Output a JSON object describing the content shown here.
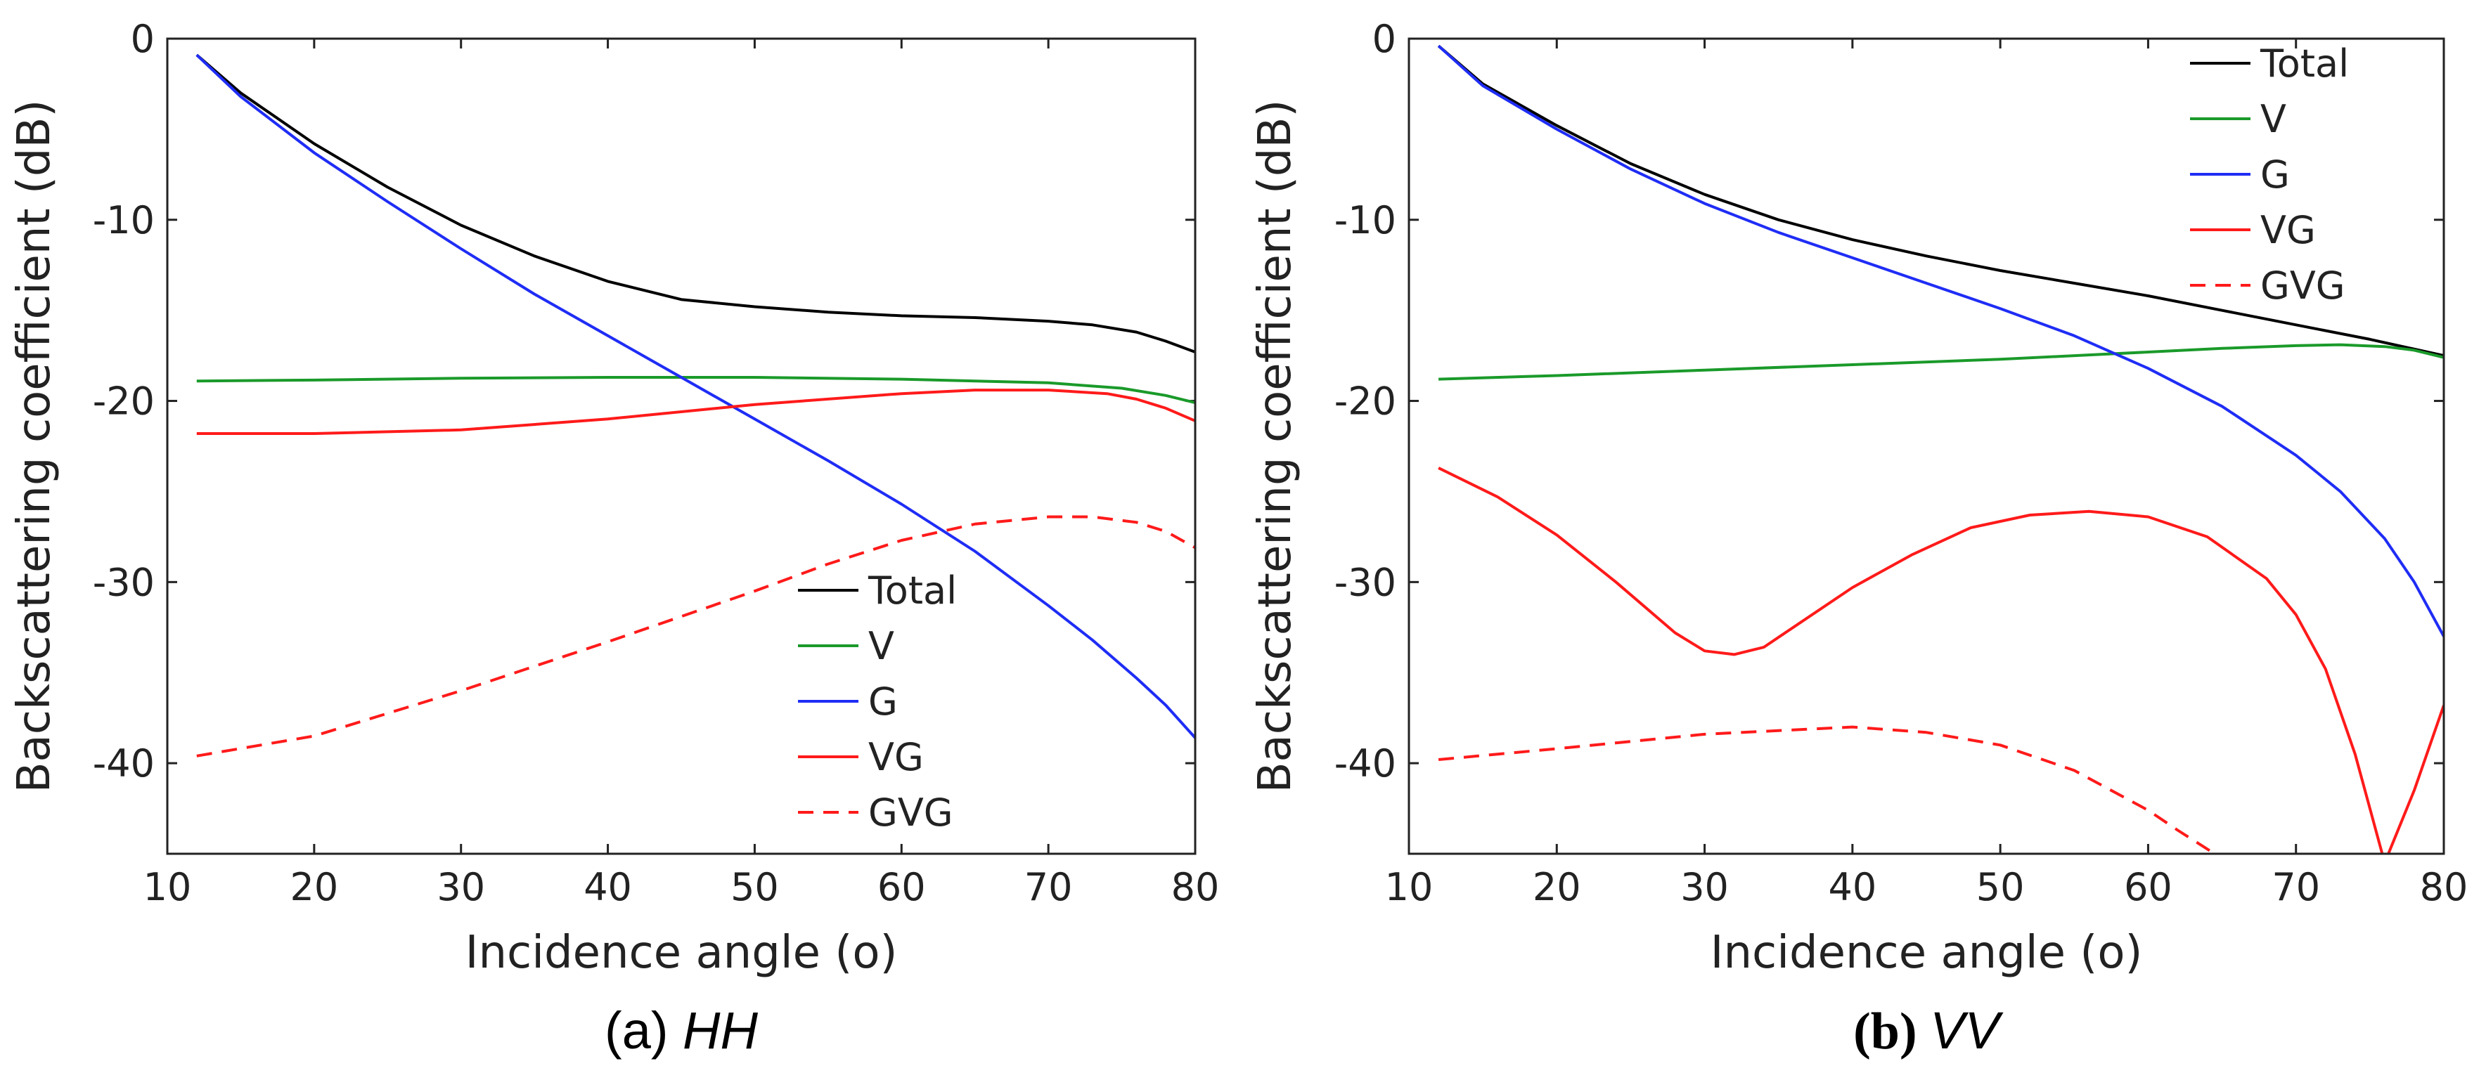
{
  "chart_data": [
    {
      "type": "line",
      "caption": {
        "prefix": "(a) ",
        "label": "HH"
      },
      "xlabel": "Incidence angle (o)",
      "ylabel": "Backscattering coefficient (dB)",
      "xlim": [
        10,
        80
      ],
      "ylim": [
        -45,
        0
      ],
      "xticks": [
        10,
        20,
        30,
        40,
        50,
        60,
        70,
        80
      ],
      "yticks": [
        0,
        -10,
        -20,
        -30,
        -40
      ],
      "legend_position": "lower-right",
      "series": [
        {
          "name": "Total",
          "color": "#000000",
          "dash": "solid",
          "x": [
            12,
            15,
            20,
            25,
            30,
            35,
            40,
            45,
            50,
            55,
            60,
            65,
            70,
            73,
            76,
            78,
            80
          ],
          "y": [
            -0.9,
            -3.0,
            -5.8,
            -8.2,
            -10.3,
            -12.0,
            -13.4,
            -14.4,
            -14.8,
            -15.1,
            -15.3,
            -15.4,
            -15.6,
            -15.8,
            -16.2,
            -16.7,
            -17.3
          ]
        },
        {
          "name": "V",
          "color": "#1a9a2a",
          "dash": "solid",
          "x": [
            12,
            20,
            30,
            40,
            50,
            60,
            70,
            75,
            78,
            80
          ],
          "y": [
            -18.9,
            -18.85,
            -18.75,
            -18.7,
            -18.7,
            -18.8,
            -19.0,
            -19.3,
            -19.7,
            -20.1
          ]
        },
        {
          "name": "G",
          "color": "#1f2df5",
          "dash": "solid",
          "x": [
            12,
            15,
            20,
            25,
            30,
            35,
            40,
            45,
            50,
            55,
            60,
            65,
            70,
            73,
            76,
            78,
            80
          ],
          "y": [
            -0.9,
            -3.2,
            -6.3,
            -9.0,
            -11.6,
            -14.1,
            -16.4,
            -18.7,
            -21.0,
            -23.3,
            -25.7,
            -28.3,
            -31.3,
            -33.2,
            -35.3,
            -36.8,
            -38.6
          ]
        },
        {
          "name": "VG",
          "color": "#ff1a1a",
          "dash": "solid",
          "x": [
            12,
            20,
            30,
            40,
            50,
            60,
            65,
            70,
            74,
            76,
            78,
            80
          ],
          "y": [
            -21.8,
            -21.8,
            -21.6,
            -21.0,
            -20.2,
            -19.6,
            -19.4,
            -19.4,
            -19.6,
            -19.9,
            -20.4,
            -21.1
          ]
        },
        {
          "name": "GVG",
          "color": "#ff1a1a",
          "dash": "dashed",
          "x": [
            12,
            20,
            30,
            40,
            50,
            55,
            60,
            65,
            70,
            73,
            76,
            78,
            80
          ],
          "y": [
            -39.6,
            -38.5,
            -36.0,
            -33.3,
            -30.5,
            -29.0,
            -27.7,
            -26.8,
            -26.4,
            -26.4,
            -26.7,
            -27.2,
            -28.1
          ]
        }
      ]
    },
    {
      "type": "line",
      "caption": {
        "prefix": "(b) ",
        "label": "VV"
      },
      "xlabel": "Incidence angle (o)",
      "ylabel": "Backscattering coefficient (dB)",
      "xlim": [
        10,
        80
      ],
      "ylim": [
        -45,
        0
      ],
      "xticks": [
        10,
        20,
        30,
        40,
        50,
        60,
        70,
        80
      ],
      "yticks": [
        0,
        -10,
        -20,
        -30,
        -40
      ],
      "legend_position": "upper-right",
      "series": [
        {
          "name": "Total",
          "color": "#000000",
          "dash": "solid",
          "x": [
            12,
            15,
            20,
            25,
            30,
            35,
            40,
            45,
            50,
            55,
            60,
            65,
            70,
            75,
            80
          ],
          "y": [
            -0.4,
            -2.5,
            -4.8,
            -6.9,
            -8.6,
            -10.0,
            -11.1,
            -12.0,
            -12.8,
            -13.5,
            -14.2,
            -15.0,
            -15.8,
            -16.6,
            -17.5
          ]
        },
        {
          "name": "V",
          "color": "#1a9a2a",
          "dash": "solid",
          "x": [
            12,
            20,
            30,
            40,
            50,
            60,
            65,
            70,
            73,
            76,
            78,
            80
          ],
          "y": [
            -18.8,
            -18.6,
            -18.3,
            -18.0,
            -17.7,
            -17.3,
            -17.1,
            -16.95,
            -16.9,
            -17.0,
            -17.2,
            -17.6
          ]
        },
        {
          "name": "G",
          "color": "#1f2df5",
          "dash": "solid",
          "x": [
            12,
            15,
            20,
            25,
            30,
            35,
            40,
            45,
            50,
            55,
            60,
            65,
            70,
            73,
            76,
            78,
            80
          ],
          "y": [
            -0.4,
            -2.6,
            -5.0,
            -7.2,
            -9.1,
            -10.7,
            -12.1,
            -13.5,
            -14.9,
            -16.4,
            -18.2,
            -20.3,
            -23.0,
            -25.0,
            -27.6,
            -30.0,
            -33.0
          ]
        },
        {
          "name": "VG",
          "color": "#ff1a1a",
          "dash": "solid",
          "x": [
            12,
            16,
            20,
            24,
            28,
            30,
            32,
            34,
            36,
            40,
            44,
            48,
            52,
            56,
            60,
            64,
            68,
            70,
            72,
            74,
            75,
            76,
            78,
            80
          ],
          "y": [
            -23.7,
            -25.3,
            -27.4,
            -30.0,
            -32.8,
            -33.8,
            -34.0,
            -33.6,
            -32.5,
            -30.3,
            -28.5,
            -27.0,
            -26.3,
            -26.1,
            -26.4,
            -27.5,
            -29.8,
            -31.8,
            -34.8,
            -39.5,
            -42.5,
            -45.5,
            -41.5,
            -36.8
          ]
        },
        {
          "name": "GVG",
          "color": "#ff1a1a",
          "dash": "dashed",
          "x": [
            12,
            20,
            30,
            40,
            45,
            50,
            55,
            60,
            62,
            64.5
          ],
          "y": [
            -39.8,
            -39.2,
            -38.4,
            -38.0,
            -38.3,
            -39.0,
            -40.4,
            -42.6,
            -43.7,
            -45.0
          ]
        }
      ]
    }
  ]
}
